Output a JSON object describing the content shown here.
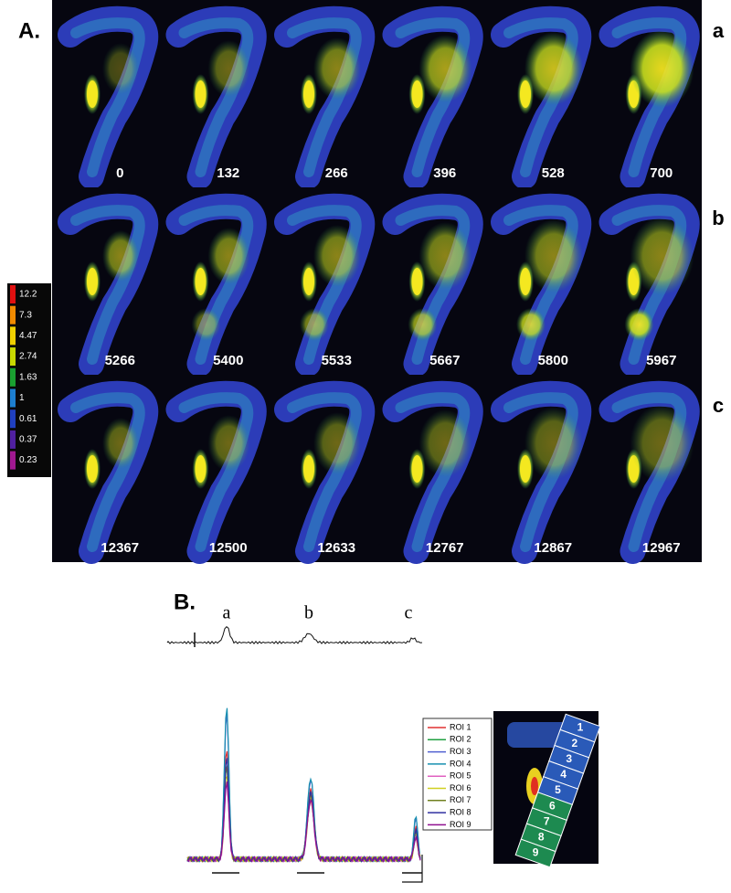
{
  "panel_a": {
    "label": "A.",
    "rows": [
      {
        "letter": "a",
        "frames": [
          "0",
          "132",
          "266",
          "396",
          "528",
          "700"
        ]
      },
      {
        "letter": "b",
        "frames": [
          "5266",
          "5400",
          "5533",
          "5667",
          "5800",
          "5967"
        ]
      },
      {
        "letter": "c",
        "frames": [
          "12367",
          "12500",
          "12633",
          "12767",
          "12867",
          "12967"
        ]
      }
    ]
  },
  "colorbar": {
    "labels": [
      "12.2",
      "7.3",
      "4.47",
      "2.74",
      "1.63",
      "1",
      "0.61",
      "0.37",
      "0.23"
    ],
    "colors": [
      "#e01010",
      "#f08a00",
      "#f0d000",
      "#c8d800",
      "#1aa030",
      "#1d7fd0",
      "#2040c0",
      "#5020a0",
      "#a01890"
    ]
  },
  "panel_b": {
    "label": "B.",
    "trace_labels": [
      "a",
      "b",
      "c"
    ],
    "legend": [
      {
        "name": "ROI 1",
        "color": "#e03030"
      },
      {
        "name": "ROI 2",
        "color": "#20a040"
      },
      {
        "name": "ROI 3",
        "color": "#5060d0"
      },
      {
        "name": "ROI 4",
        "color": "#1890b0"
      },
      {
        "name": "ROI 5",
        "color": "#e060c0"
      },
      {
        "name": "ROI 6",
        "color": "#d0d020"
      },
      {
        "name": "ROI 7",
        "color": "#708020"
      },
      {
        "name": "ROI 8",
        "color": "#3030a0"
      },
      {
        "name": "ROI 9",
        "color": "#901090"
      }
    ],
    "roi_numbers": [
      "1",
      "2",
      "3",
      "4",
      "5",
      "6",
      "7",
      "8",
      "9"
    ]
  }
}
